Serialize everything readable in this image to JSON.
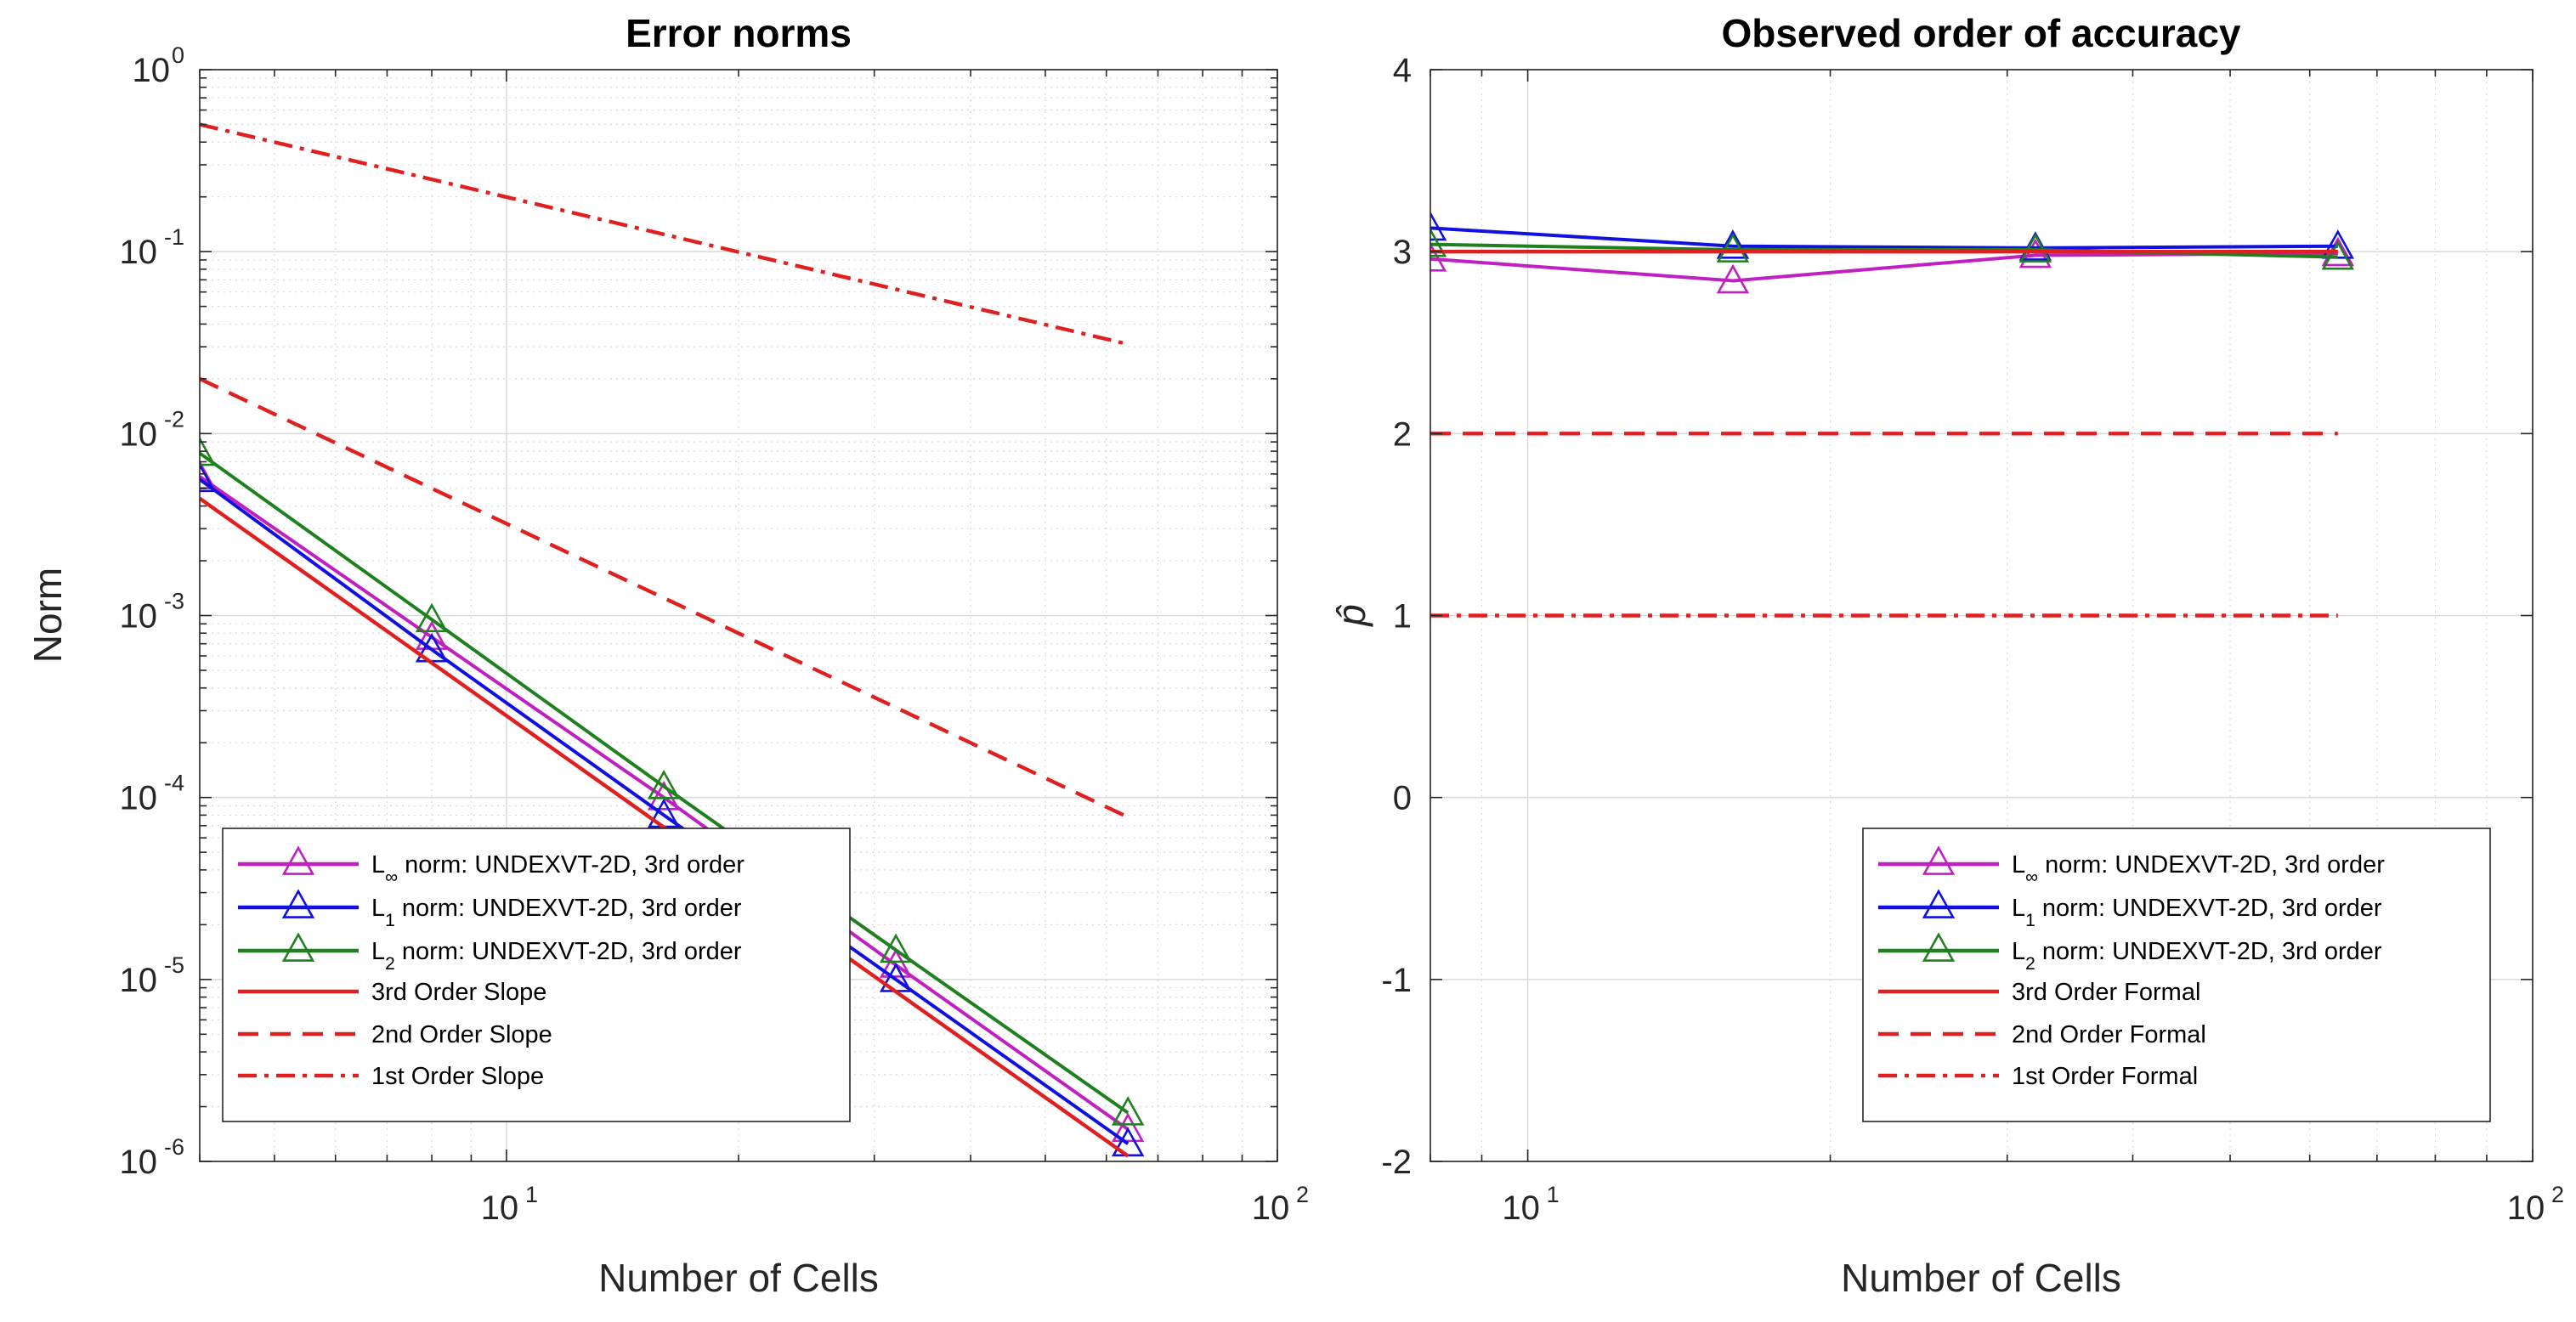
{
  "chart_data": [
    {
      "type": "line",
      "title": "Error norms",
      "xlabel": "Number of Cells",
      "ylabel": "Norm",
      "xscale": "log",
      "yscale": "log",
      "xlim": [
        4,
        100
      ],
      "ylim": [
        1e-06,
        1
      ],
      "xticks": [
        {
          "base": "10",
          "exp": "1",
          "value": 10
        },
        {
          "base": "10",
          "exp": "2",
          "value": 100
        }
      ],
      "yticks": [
        {
          "base": "10",
          "exp": "0",
          "value": 1
        },
        {
          "base": "10",
          "exp": "-1",
          "value": 0.1
        },
        {
          "base": "10",
          "exp": "-2",
          "value": 0.01
        },
        {
          "base": "10",
          "exp": "-3",
          "value": 0.001
        },
        {
          "base": "10",
          "exp": "-4",
          "value": 0.0001
        },
        {
          "base": "10",
          "exp": "-5",
          "value": 1e-05
        },
        {
          "base": "10",
          "exp": "-6",
          "value": 1e-06
        }
      ],
      "grid": true,
      "legend_position": "bottom-left",
      "series": [
        {
          "key": "linf",
          "name_pre": "L",
          "name_sub": "∞",
          "name_post": " norm: UNDEXVT-2D, 3rd order",
          "color": "#c020c0",
          "style": "solid",
          "marker": "triangle",
          "x": [
            4,
            8,
            16,
            32,
            64
          ],
          "y": [
            0.0058,
            0.00076,
            0.0001,
            1.2e-05,
            1.5e-06
          ]
        },
        {
          "key": "l1",
          "name_pre": "L",
          "name_sub": "1",
          "name_post": " norm: UNDEXVT-2D, 3rd order",
          "color": "#1010e0",
          "style": "solid",
          "marker": "triangle",
          "x": [
            4,
            8,
            16,
            32,
            64
          ],
          "y": [
            0.0056,
            0.00065,
            8e-05,
            1e-05,
            1.25e-06
          ]
        },
        {
          "key": "l2",
          "name_pre": "L",
          "name_sub": "2",
          "name_post": " norm: UNDEXVT-2D, 3rd order",
          "color": "#208020",
          "style": "solid",
          "marker": "triangle",
          "x": [
            4,
            8,
            16,
            32,
            64
          ],
          "y": [
            0.0078,
            0.00095,
            0.000115,
            1.45e-05,
            1.85e-06
          ]
        },
        {
          "key": "s3",
          "name_pre": "3rd Order Slope",
          "name_sub": "",
          "name_post": "",
          "color": "#e02020",
          "style": "solid",
          "marker": "none",
          "x": [
            4,
            64
          ],
          "y": [
            0.0044,
            1.07e-06
          ]
        },
        {
          "key": "s2",
          "name_pre": "2nd Order Slope",
          "name_sub": "",
          "name_post": "",
          "color": "#e02020",
          "style": "dashed",
          "marker": "none",
          "x": [
            4,
            64
          ],
          "y": [
            0.02,
            7.8e-05
          ]
        },
        {
          "key": "s1",
          "name_pre": "1st Order Slope",
          "name_sub": "",
          "name_post": "",
          "color": "#e02020",
          "style": "dashdot",
          "marker": "none",
          "x": [
            4,
            64
          ],
          "y": [
            0.5,
            0.031
          ]
        }
      ]
    },
    {
      "type": "line",
      "title": "Observed order of accuracy",
      "xlabel": "Number of Cells",
      "ylabel": "p̂",
      "xscale": "log",
      "yscale": "linear",
      "xlim": [
        8,
        100
      ],
      "ylim": [
        -2,
        4
      ],
      "xticks": [
        {
          "base": "10",
          "exp": "1",
          "value": 10
        },
        {
          "base": "10",
          "exp": "2",
          "value": 100
        }
      ],
      "yticks": [
        {
          "label": "4",
          "value": 4
        },
        {
          "label": "3",
          "value": 3
        },
        {
          "label": "2",
          "value": 2
        },
        {
          "label": "1",
          "value": 1
        },
        {
          "label": "0",
          "value": 0
        },
        {
          "label": "-1",
          "value": -1
        },
        {
          "label": "-2",
          "value": -2
        }
      ],
      "grid": true,
      "legend_position": "bottom-right",
      "series": [
        {
          "key": "linf",
          "name_pre": "L",
          "name_sub": "∞",
          "name_post": " norm: UNDEXVT-2D, 3rd order",
          "color": "#c020c0",
          "style": "solid",
          "marker": "triangle",
          "x": [
            8,
            16,
            32,
            64
          ],
          "y": [
            2.96,
            2.84,
            2.98,
            2.99
          ]
        },
        {
          "key": "l1",
          "name_pre": "L",
          "name_sub": "1",
          "name_post": " norm: UNDEXVT-2D, 3rd order",
          "color": "#1010e0",
          "style": "solid",
          "marker": "triangle",
          "x": [
            8,
            16,
            32,
            64
          ],
          "y": [
            3.13,
            3.03,
            3.02,
            3.03
          ]
        },
        {
          "key": "l2",
          "name_pre": "L",
          "name_sub": "2",
          "name_post": " norm: UNDEXVT-2D, 3rd order",
          "color": "#208020",
          "style": "solid",
          "marker": "triangle",
          "x": [
            8,
            16,
            32,
            64
          ],
          "y": [
            3.04,
            3.01,
            3.01,
            2.97
          ]
        },
        {
          "key": "f3",
          "name_pre": "3rd Order Formal",
          "name_sub": "",
          "name_post": "",
          "color": "#e02020",
          "style": "solid",
          "marker": "none",
          "x": [
            8,
            64
          ],
          "y": [
            3,
            3
          ]
        },
        {
          "key": "f2",
          "name_pre": "2nd Order Formal",
          "name_sub": "",
          "name_post": "",
          "color": "#e02020",
          "style": "dashed",
          "marker": "none",
          "x": [
            8,
            64
          ],
          "y": [
            2,
            2
          ]
        },
        {
          "key": "f1",
          "name_pre": "1st Order Formal",
          "name_sub": "",
          "name_post": "",
          "color": "#e02020",
          "style": "dashdot",
          "marker": "none",
          "x": [
            8,
            64
          ],
          "y": [
            1,
            1
          ]
        }
      ]
    }
  ]
}
